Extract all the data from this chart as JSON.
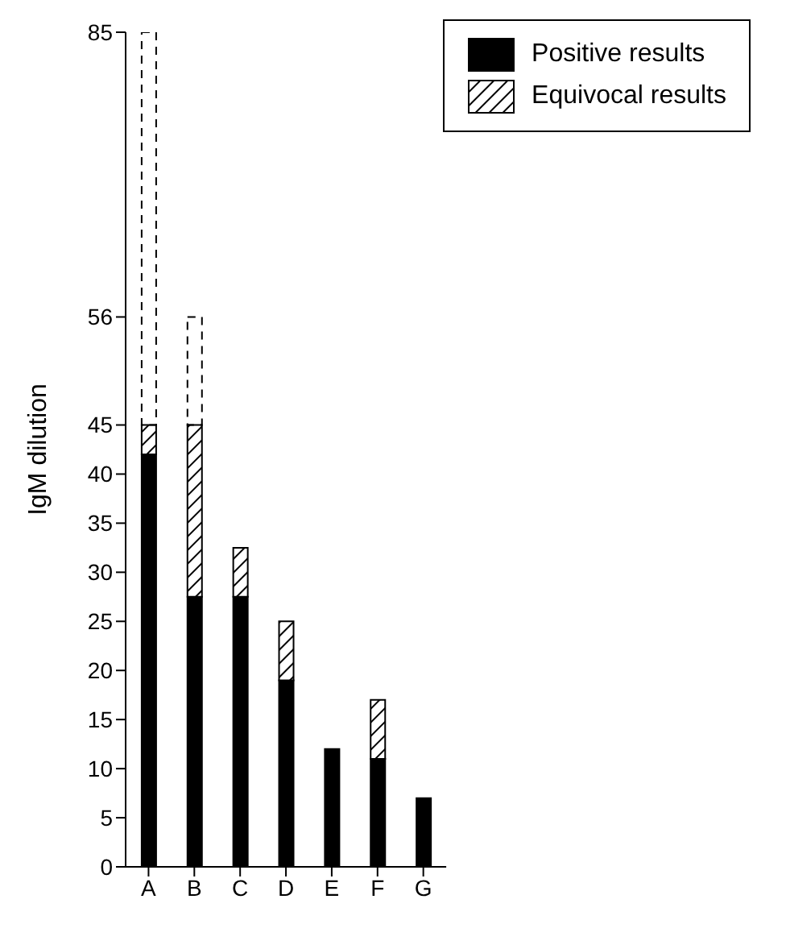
{
  "chart_data": {
    "type": "bar",
    "ylabel": "IgM dilution",
    "categories": [
      "A",
      "B",
      "C",
      "D",
      "E",
      "F",
      "G"
    ],
    "stacked": true,
    "series": [
      {
        "name": "Positive results",
        "color": "#000000",
        "values": [
          42,
          27.5,
          27.5,
          19,
          12,
          11,
          7
        ]
      },
      {
        "name": "Equivocal results",
        "color": "#000000",
        "values": [
          3,
          17.5,
          5,
          6,
          null,
          6,
          null
        ]
      },
      {
        "color": "#000000",
        "line_style": "dashed",
        "values": [
          40,
          11,
          null,
          null,
          null,
          null,
          null
        ]
      }
    ],
    "ylim": [
      0,
      85
    ],
    "yticks": [
      0,
      5,
      10,
      15,
      20,
      25,
      30,
      35,
      40,
      45,
      56,
      85
    ],
    "legend": "top right"
  }
}
